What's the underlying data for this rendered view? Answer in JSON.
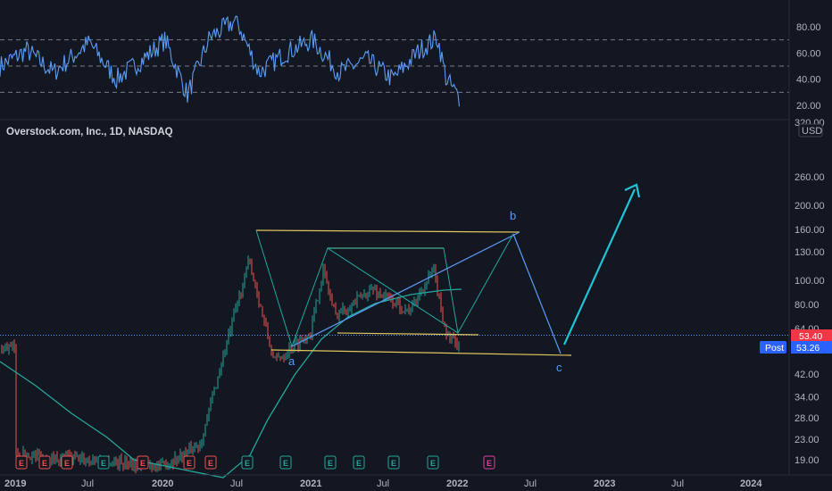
{
  "header": {
    "symbol_title": "Overstock.com, Inc., 1D, NASDAQ",
    "currency": "USD"
  },
  "colors": {
    "background": "#131722",
    "rsi_line": "#5b9cf6",
    "ma_line": "#26a69a",
    "bull": "#26a69a",
    "bear": "#ef5350",
    "channel": "#e0c65c",
    "wave": "#5b9cf6",
    "projection": "#22c3d6",
    "last_price_badge": "#f23645",
    "post_badge": "#2962ff"
  },
  "rsi_panel": {
    "ticks": [
      "80.00",
      "60.00",
      "40.00",
      "20.00"
    ],
    "levels": [
      70,
      50,
      30
    ]
  },
  "price_panel": {
    "ticks": [
      "320.00",
      "260.00",
      "200.00",
      "160.00",
      "130.00",
      "100.00",
      "80.00",
      "64.00",
      "53.40",
      "42.00",
      "34.00",
      "28.00",
      "23.00",
      "19.00"
    ],
    "last_price": "53.40",
    "post_label": "Post",
    "post_price": "53.26"
  },
  "time_axis": {
    "labels": [
      "2019",
      "Jul",
      "2020",
      "Jul",
      "2021",
      "Jul",
      "2022",
      "Jul",
      "2023",
      "Jul",
      "2024"
    ]
  },
  "annotations": {
    "wave_labels": [
      "a",
      "b",
      "c"
    ],
    "earnings_marker": "E"
  },
  "chart_data": {
    "type": "line",
    "price_scale": "log",
    "series": [
      {
        "x": [
          "2019-01",
          "2019-07",
          "2020-01",
          "2020-04",
          "2020-07",
          "2020-08",
          "2020-10",
          "2021-01",
          "2021-02",
          "2021-03",
          "2021-06",
          "2021-09",
          "2021-11",
          "2021-12",
          "2022-01"
        ],
        "values": [
          20,
          19,
          18,
          22,
          80,
          120,
          47,
          62,
          110,
          72,
          92,
          75,
          110,
          62,
          53.4
        ]
      }
    ],
    "ylim": [
      17,
      340
    ]
  }
}
